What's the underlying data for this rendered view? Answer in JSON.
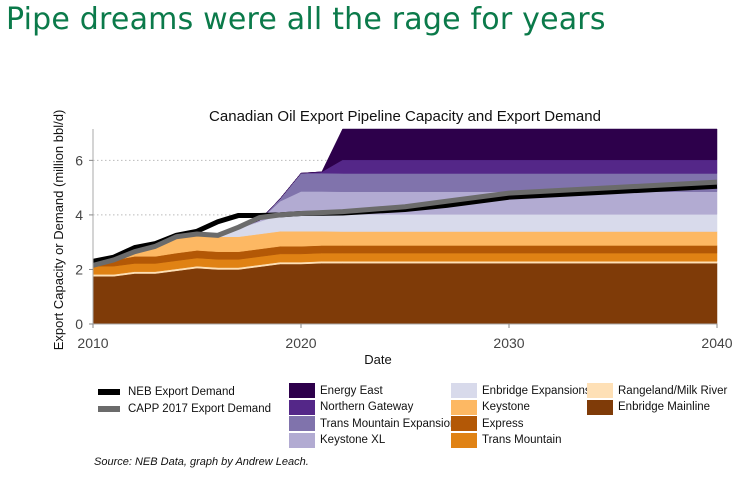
{
  "slide": {
    "title": "Pipe dreams were all the rage for years",
    "title_color": "#0b7a4a",
    "source": "Source: NEB Data, graph by Andrew Leach."
  },
  "chart_data": {
    "type": "area",
    "stacked": true,
    "title": "Canadian Oil Export Pipeline Capacity and Export Demand",
    "xlabel": "Date",
    "ylabel": "Export Capacity or Demand (million bbl/d)",
    "xlim": [
      2010,
      2040
    ],
    "ylim": [
      0,
      7.15
    ],
    "xticks": [
      "2010",
      "2020",
      "2030",
      "2040"
    ],
    "xtick_values": [
      2010,
      2020,
      2030,
      2040
    ],
    "yticks": [
      "0",
      "2",
      "4",
      "6"
    ],
    "ytick_values": [
      0,
      2,
      4,
      6
    ],
    "grid": "horizontal dotted",
    "legend_position": "bottom",
    "x": [
      2010,
      2011,
      2012,
      2013,
      2014,
      2015,
      2016,
      2017,
      2018,
      2019,
      2020,
      2021,
      2022,
      2025,
      2030,
      2040
    ],
    "series": [
      {
        "name": "Enbridge Mainline",
        "color": "#7f3b08",
        "values": [
          1.75,
          1.75,
          1.85,
          1.85,
          1.95,
          2.05,
          2.0,
          2.0,
          2.1,
          2.2,
          2.2,
          2.23,
          2.23,
          2.23,
          2.23,
          2.23
        ]
      },
      {
        "name": "Rangeland/Milk River",
        "color": "#fee0b6",
        "values": [
          0.07,
          0.07,
          0.07,
          0.07,
          0.07,
          0.07,
          0.07,
          0.07,
          0.07,
          0.07,
          0.07,
          0.07,
          0.07,
          0.07,
          0.07,
          0.07
        ]
      },
      {
        "name": "Trans Mountain",
        "color": "#e08214",
        "values": [
          0.3,
          0.3,
          0.3,
          0.3,
          0.3,
          0.3,
          0.3,
          0.3,
          0.3,
          0.3,
          0.3,
          0.3,
          0.3,
          0.3,
          0.3,
          0.3
        ]
      },
      {
        "name": "Express",
        "color": "#b35806",
        "values": [
          0.2,
          0.22,
          0.26,
          0.26,
          0.28,
          0.28,
          0.28,
          0.28,
          0.28,
          0.28,
          0.28,
          0.28,
          0.28,
          0.28,
          0.28,
          0.28
        ]
      },
      {
        "name": "Keystone",
        "color": "#fdb863",
        "values": [
          0.05,
          0.1,
          0.3,
          0.45,
          0.55,
          0.55,
          0.55,
          0.55,
          0.55,
          0.55,
          0.55,
          0.52,
          0.51,
          0.51,
          0.51,
          0.51
        ]
      },
      {
        "name": "Enbridge Expansions",
        "color": "#d8daeb",
        "values": [
          0,
          0,
          0,
          0,
          0,
          0.05,
          0.1,
          0.3,
          0.45,
          0.6,
          0.63,
          0.63,
          0.63,
          0.63,
          0.63,
          0.63
        ]
      },
      {
        "name": "Keystone XL",
        "color": "#b2abd2",
        "values": [
          0,
          0,
          0,
          0,
          0,
          0,
          0,
          0,
          0.05,
          0.5,
          0.83,
          0.83,
          0.83,
          0.83,
          0.83,
          0.83
        ]
      },
      {
        "name": "Trans Mountain Expansion",
        "color": "#8073ac",
        "values": [
          0,
          0,
          0,
          0,
          0,
          0,
          0,
          0,
          0,
          0.1,
          0.67,
          0.67,
          0.67,
          0.67,
          0.67,
          0.67
        ]
      },
      {
        "name": "Northern Gateway",
        "color": "#542788",
        "values": [
          0,
          0,
          0,
          0,
          0,
          0,
          0,
          0,
          0,
          0,
          0,
          0.05,
          0.5,
          0.5,
          0.5,
          0.5
        ]
      },
      {
        "name": "Energy East",
        "color": "#2d004b",
        "values": [
          0,
          0,
          0,
          0,
          0,
          0,
          0,
          0,
          0,
          0,
          0,
          0,
          1.15,
          1.15,
          1.15,
          1.15
        ]
      }
    ],
    "lines": [
      {
        "name": "NEB Export Demand",
        "color": "#000000",
        "x": [
          2010,
          2011,
          2012,
          2013,
          2014,
          2015,
          2016,
          2017,
          2018,
          2019,
          2020,
          2022,
          2025,
          2027,
          2030,
          2035,
          2040
        ],
        "values": [
          2.3,
          2.45,
          2.8,
          2.95,
          3.25,
          3.4,
          3.75,
          3.98,
          3.98,
          4.0,
          4.05,
          4.07,
          4.2,
          4.35,
          4.65,
          4.85,
          5.05
        ]
      },
      {
        "name": "CAPP 2017 Export Demand",
        "color": "#6b6b6b",
        "x": [
          2010,
          2011,
          2012,
          2013,
          2014,
          2015,
          2016,
          2017,
          2018,
          2019,
          2020,
          2022,
          2025,
          2027,
          2030,
          2035,
          2040
        ],
        "values": [
          2.15,
          2.35,
          2.65,
          2.85,
          3.2,
          3.3,
          3.25,
          3.55,
          3.9,
          4.0,
          4.05,
          4.12,
          4.3,
          4.5,
          4.8,
          5.0,
          5.2
        ]
      }
    ]
  },
  "legend": {
    "lines": [
      {
        "label": "NEB Export Demand",
        "color": "#000000"
      },
      {
        "label": "CAPP 2017 Export Demand",
        "color": "#6b6b6b"
      }
    ],
    "col2": [
      {
        "label": "Energy East",
        "color": "#2d004b"
      },
      {
        "label": "Northern Gateway",
        "color": "#542788"
      },
      {
        "label": "Trans Mountain Expansion",
        "color": "#8073ac"
      },
      {
        "label": "Keystone XL",
        "color": "#b2abd2"
      }
    ],
    "col3": [
      {
        "label": "Enbridge Expansions",
        "color": "#d8daeb"
      },
      {
        "label": "Keystone",
        "color": "#fdb863"
      },
      {
        "label": "Express",
        "color": "#b35806"
      },
      {
        "label": "Trans Mountain",
        "color": "#e08214"
      }
    ],
    "col4": [
      {
        "label": "Rangeland/Milk River",
        "color": "#fee0b6"
      },
      {
        "label": "Enbridge Mainline",
        "color": "#7f3b08"
      }
    ]
  }
}
